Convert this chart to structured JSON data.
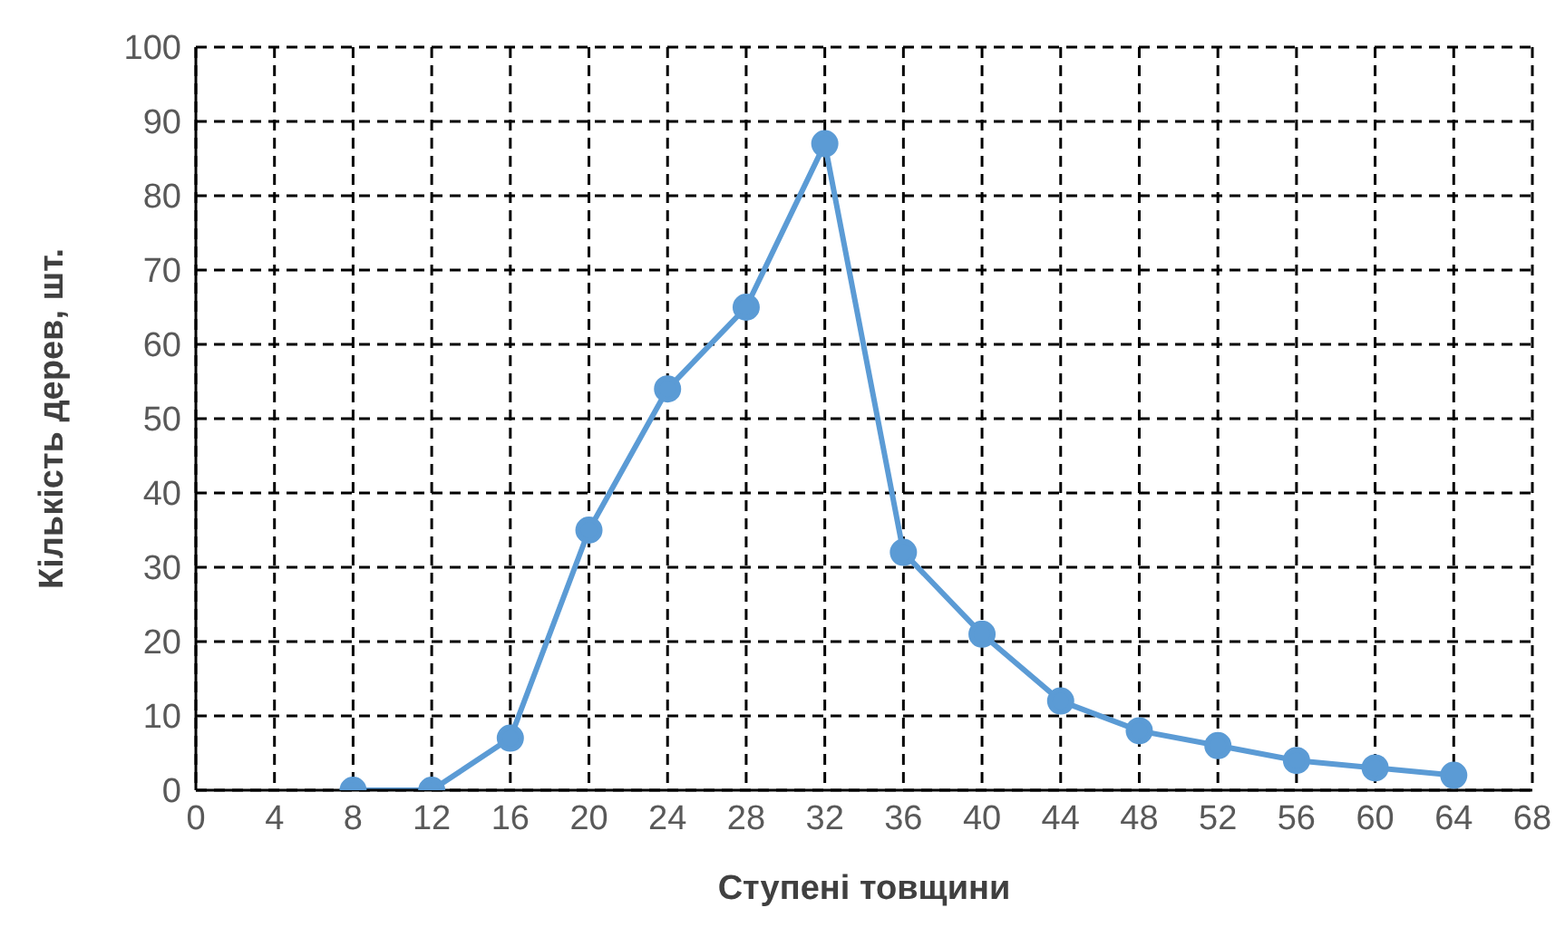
{
  "chart_data": {
    "type": "line",
    "xlabel": "Ступені товщини",
    "ylabel": "Кількість дерев, шт.",
    "x": [
      8,
      12,
      16,
      20,
      24,
      28,
      32,
      36,
      40,
      44,
      48,
      52,
      56,
      60,
      64
    ],
    "series": [
      {
        "color": "#5b9bd5",
        "values": [
          0,
          0,
          7,
          35,
          54,
          65,
          87,
          32,
          21,
          12,
          8,
          6,
          4,
          3,
          2
        ]
      }
    ],
    "xlim": [
      0,
      68
    ],
    "xticks": [
      0,
      4,
      8,
      12,
      16,
      20,
      24,
      28,
      32,
      36,
      40,
      44,
      48,
      52,
      56,
      60,
      64,
      68
    ],
    "ylim": [
      0,
      100
    ],
    "yticks": [
      0,
      10,
      20,
      30,
      40,
      50,
      60,
      70,
      80,
      90,
      100
    ],
    "grid": true,
    "marker": "circle",
    "line_style": "solid",
    "legend": false
  }
}
